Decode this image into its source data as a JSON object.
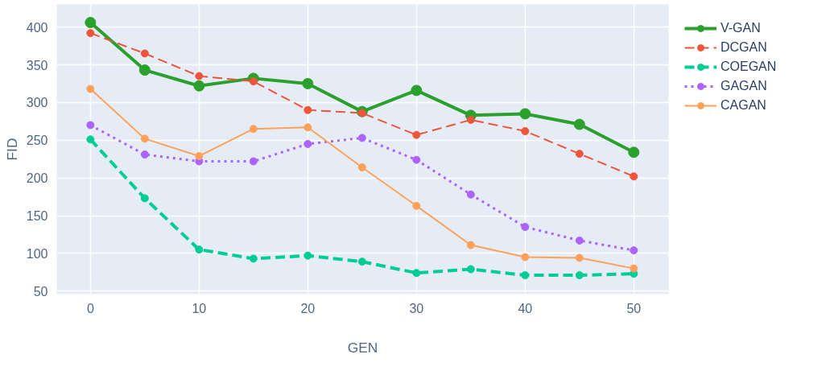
{
  "chart_data": {
    "type": "line",
    "xlabel": "GEN",
    "ylabel": "FID",
    "x": [
      0,
      5,
      10,
      15,
      20,
      25,
      30,
      35,
      40,
      45,
      50
    ],
    "xlim": [
      -3.1,
      53.2
    ],
    "xticks": [
      0,
      10,
      20,
      30,
      40,
      50
    ],
    "ylim": [
      46,
      430
    ],
    "yticks": [
      50,
      100,
      150,
      200,
      250,
      300,
      350,
      400
    ],
    "grid": true,
    "legend": "top right",
    "marker": "circle",
    "series": [
      {
        "name": "V-GAN",
        "color": "#2ca02c",
        "line_style": "solid",
        "values": [
          406,
          343,
          322,
          332,
          325,
          288,
          316,
          283,
          285,
          271,
          234
        ]
      },
      {
        "name": "DCGAN",
        "color": "#ef553b",
        "line_style": "dashed",
        "values": [
          392,
          365,
          335,
          328,
          290,
          286,
          257,
          277,
          262,
          232,
          202
        ]
      },
      {
        "name": "COEGAN",
        "color": "#00cc96",
        "line_style": "dashed",
        "values": [
          251,
          173,
          105,
          93,
          97,
          89,
          74,
          79,
          71,
          71,
          73
        ]
      },
      {
        "name": "GAGAN",
        "color": "#ab63fa",
        "line_style": "dotted",
        "values": [
          270,
          231,
          222,
          222,
          245,
          253,
          224,
          178,
          135,
          117,
          104
        ]
      },
      {
        "name": "CAGAN",
        "color": "#ffa15a",
        "line_style": "solid",
        "values": [
          318,
          252,
          229,
          265,
          267,
          214,
          163,
          111,
          95,
          94,
          80
        ]
      }
    ]
  }
}
